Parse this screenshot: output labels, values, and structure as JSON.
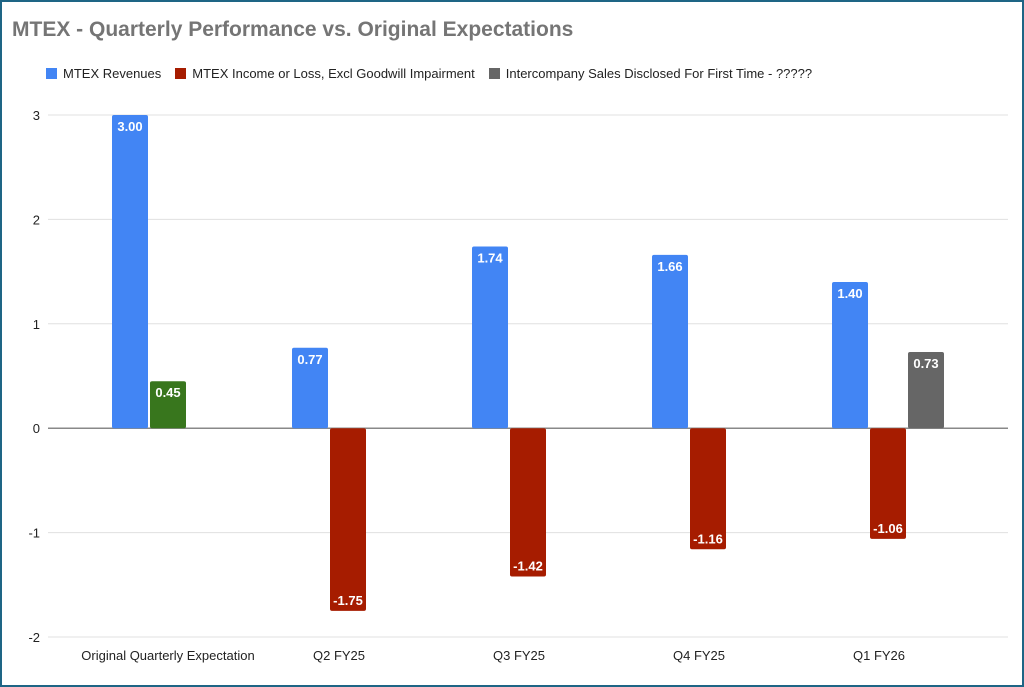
{
  "chart_data": {
    "type": "bar",
    "title": "MTEX - Quarterly Performance vs. Original Expectations",
    "categories": [
      "Original Quarterly Expectation",
      "Q2 FY25",
      "Q3 FY25",
      "Q4 FY25",
      "Q1 FY26"
    ],
    "series": [
      {
        "name": "MTEX Revenues",
        "color": "#4285f4",
        "values": [
          3.0,
          0.77,
          1.74,
          1.66,
          1.4
        ]
      },
      {
        "name": "MTEX Income or Loss, Excl Goodwill Impairment",
        "color": "#a61c00",
        "values": [
          0.45,
          -1.75,
          -1.42,
          -1.16,
          -1.06
        ],
        "point_colors": [
          "#38761d",
          null,
          null,
          null,
          null
        ]
      },
      {
        "name": "Intercompany Sales Disclosed For First Time - ?????",
        "color": "#666666",
        "values": [
          null,
          null,
          null,
          null,
          0.73
        ]
      }
    ],
    "ylim": [
      -2,
      3
    ],
    "yticks": [
      -2,
      -1,
      0,
      1,
      2,
      3
    ],
    "grid": true,
    "legend": "top",
    "data_labels": true
  }
}
